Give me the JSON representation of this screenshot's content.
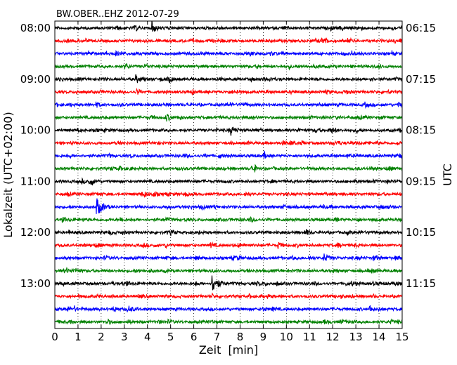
{
  "chart_data": {
    "type": "line",
    "title": "BW.OBER..EHZ 2012-07-29",
    "xlabel": "Zeit  [min]",
    "ylabel_left": "Lokalzeit (UTC+02:00)",
    "ylabel_right": "UTC",
    "xlim": [
      0,
      15
    ],
    "x_ticks": [
      "0",
      "1",
      "2",
      "3",
      "4",
      "5",
      "6",
      "7",
      "8",
      "9",
      "10",
      "11",
      "12",
      "13",
      "14",
      "15"
    ],
    "row_count": 24,
    "rows_per_hour": 4,
    "left_tick_labels": [
      "08:00",
      "09:00",
      "10:00",
      "11:00",
      "12:00",
      "13:00"
    ],
    "right_tick_labels": [
      "06:15",
      "07:15",
      "08:15",
      "09:15",
      "10:15",
      "11:15"
    ],
    "trace_colors": [
      "#000000",
      "#ff0000",
      "#0000ff",
      "#008000"
    ],
    "grid": "vertical dotted at each minute",
    "events": [
      {
        "row": 14,
        "time_min": 1.8,
        "amplitude": "large"
      },
      {
        "row": 20,
        "time_min": 6.8,
        "amplitude": "large"
      },
      {
        "row": 0,
        "time_min": 4.2,
        "amplitude": "medium"
      },
      {
        "row": 4,
        "time_min": 3.5,
        "amplitude": "medium"
      },
      {
        "row": 8,
        "time_min": 7.6,
        "amplitude": "medium"
      },
      {
        "row": 18,
        "time_min": 11.6,
        "amplitude": "medium"
      }
    ]
  }
}
